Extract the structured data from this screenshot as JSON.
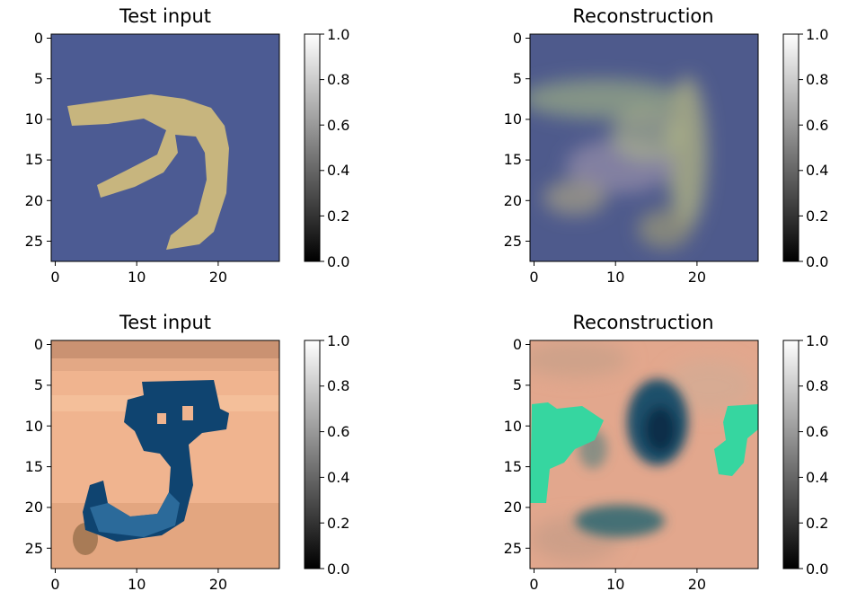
{
  "figure": {
    "layout": "2x2 grid"
  },
  "chart_data": [
    {
      "type": "heatmap",
      "title": "Test input",
      "xticks": [
        0,
        10,
        20
      ],
      "yticks": [
        0,
        5,
        10,
        15,
        20,
        25
      ],
      "xlim": [
        -0.5,
        27.5
      ],
      "ylim": [
        27.5,
        -0.5
      ],
      "grid": false,
      "image_size": [
        28,
        28
      ],
      "image_content": "colored digit 7, tan stroke on slate-blue background",
      "colors": {
        "background": "#4a5a8f",
        "stroke": "#c7b57e"
      },
      "colorbar": {
        "ticks": [
          "0.0",
          "0.2",
          "0.4",
          "0.6",
          "0.8",
          "1.0"
        ],
        "range": [
          0,
          1
        ],
        "colormap": "gray"
      }
    },
    {
      "type": "heatmap",
      "title": "Reconstruction",
      "xticks": [
        0,
        10,
        20
      ],
      "yticks": [
        0,
        5,
        10,
        15,
        20,
        25
      ],
      "xlim": [
        -0.5,
        27.5
      ],
      "ylim": [
        27.5,
        -0.5
      ],
      "grid": false,
      "image_size": [
        28,
        28
      ],
      "image_content": "blurry reconstruction of digit 7 on blue background",
      "colors": {
        "background": "#4e5a8c",
        "stroke": "#9fa986"
      },
      "colorbar": {
        "ticks": [
          "0.0",
          "0.2",
          "0.4",
          "0.6",
          "0.8",
          "1.0"
        ],
        "range": [
          0,
          1
        ],
        "colormap": "gray"
      }
    },
    {
      "type": "heatmap",
      "title": "Test input",
      "xticks": [
        0,
        10,
        20
      ],
      "yticks": [
        0,
        5,
        10,
        15,
        20,
        25
      ],
      "xlim": [
        -0.5,
        27.5
      ],
      "ylim": [
        27.5,
        -0.5
      ],
      "grid": false,
      "image_size": [
        28,
        28
      ],
      "image_content": "colored digit 3, dark blue stroke on peach textured background",
      "colors": {
        "background": "#f0b48f",
        "stroke": "#0f4470"
      },
      "colorbar": {
        "ticks": [
          "0.0",
          "0.2",
          "0.4",
          "0.6",
          "0.8",
          "1.0"
        ],
        "range": [
          0,
          1
        ],
        "colormap": "gray"
      }
    },
    {
      "type": "heatmap",
      "title": "Reconstruction",
      "xticks": [
        0,
        10,
        20
      ],
      "yticks": [
        0,
        5,
        10,
        15,
        20,
        25
      ],
      "xlim": [
        -0.5,
        27.5
      ],
      "ylim": [
        27.5,
        -0.5
      ],
      "grid": false,
      "image_size": [
        28,
        28
      ],
      "image_content": "blurry reconstruction of digit 3 with dark center and teal patches on peach background",
      "colors": {
        "background": "#e2a78d",
        "stroke": "#1d4f6a",
        "patch": "#36d6a0"
      },
      "colorbar": {
        "ticks": [
          "0.0",
          "0.2",
          "0.4",
          "0.6",
          "0.8",
          "1.0"
        ],
        "range": [
          0,
          1
        ],
        "colormap": "gray"
      }
    }
  ]
}
